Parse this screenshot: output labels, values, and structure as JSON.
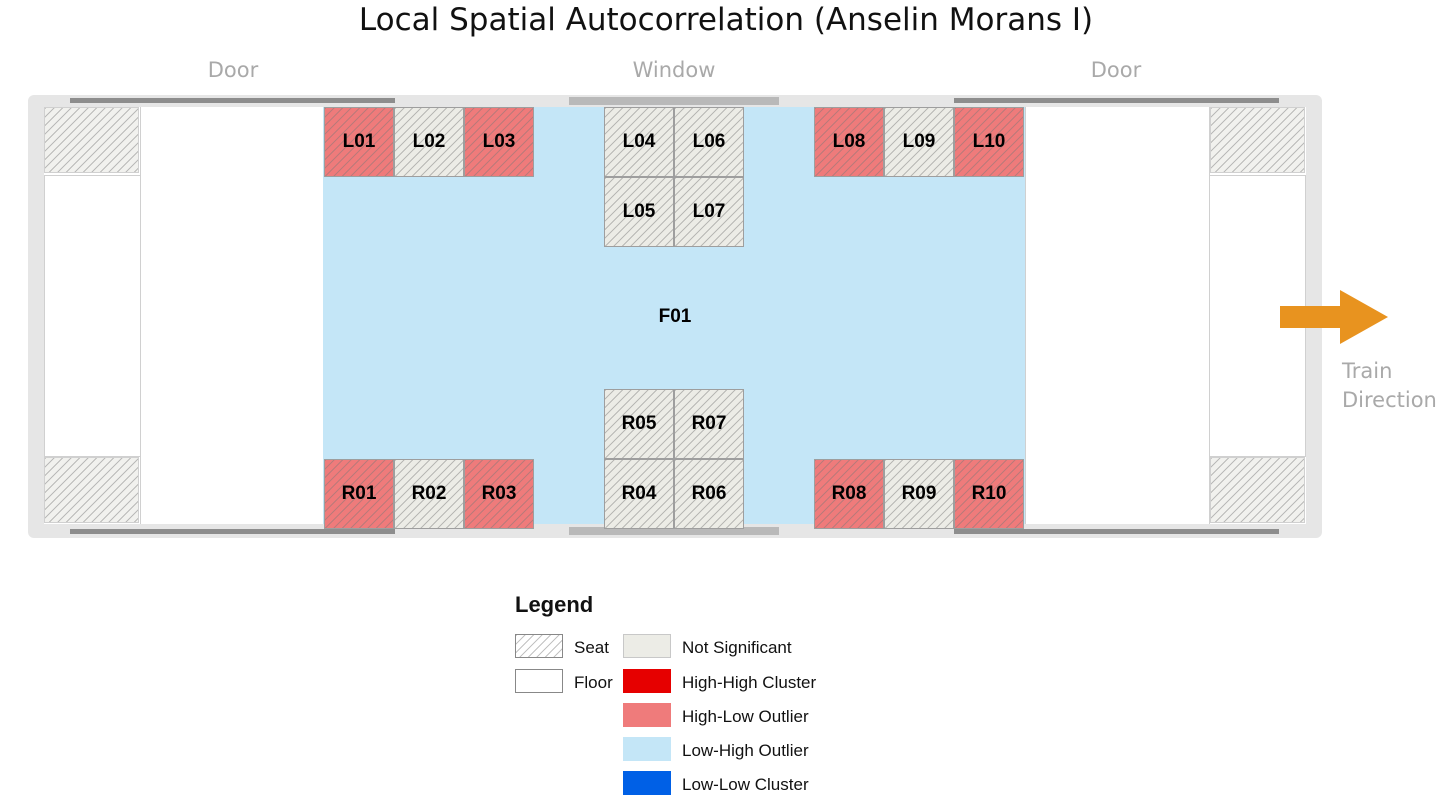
{
  "title": "Local Spatial Autocorrelation (Anselin Morans I)",
  "labels": {
    "door_left": "Door",
    "window": "Window",
    "door_right": "Door"
  },
  "direction": {
    "line1": "Train",
    "line2": "Direction"
  },
  "colors": {
    "not_significant": "#ecece6",
    "high_high": "#e60000",
    "high_low": "#ef7b7b",
    "low_high": "#c4e6f7",
    "low_low": "#0060e6",
    "arrow": "#e8931f"
  },
  "floor": {
    "id": "F01",
    "class": "low_high"
  },
  "seats": [
    {
      "id": "L01",
      "class": "high_low"
    },
    {
      "id": "L02",
      "class": "not_significant"
    },
    {
      "id": "L03",
      "class": "high_low"
    },
    {
      "id": "L04",
      "class": "not_significant"
    },
    {
      "id": "L05",
      "class": "not_significant"
    },
    {
      "id": "L06",
      "class": "not_significant"
    },
    {
      "id": "L07",
      "class": "not_significant"
    },
    {
      "id": "L08",
      "class": "high_low"
    },
    {
      "id": "L09",
      "class": "not_significant"
    },
    {
      "id": "L10",
      "class": "high_low"
    },
    {
      "id": "R01",
      "class": "high_low"
    },
    {
      "id": "R02",
      "class": "not_significant"
    },
    {
      "id": "R03",
      "class": "high_low"
    },
    {
      "id": "R04",
      "class": "not_significant"
    },
    {
      "id": "R05",
      "class": "not_significant"
    },
    {
      "id": "R06",
      "class": "not_significant"
    },
    {
      "id": "R07",
      "class": "not_significant"
    },
    {
      "id": "R08",
      "class": "high_low"
    },
    {
      "id": "R09",
      "class": "not_significant"
    },
    {
      "id": "R10",
      "class": "high_low"
    }
  ],
  "legend": {
    "title": "Legend",
    "seat": "Seat",
    "floor": "Floor",
    "not_significant": "Not Significant",
    "high_high": "High-High Cluster",
    "high_low": "High-Low Outlier",
    "low_high": "Low-High Outlier",
    "low_low": "Low-Low Cluster"
  }
}
